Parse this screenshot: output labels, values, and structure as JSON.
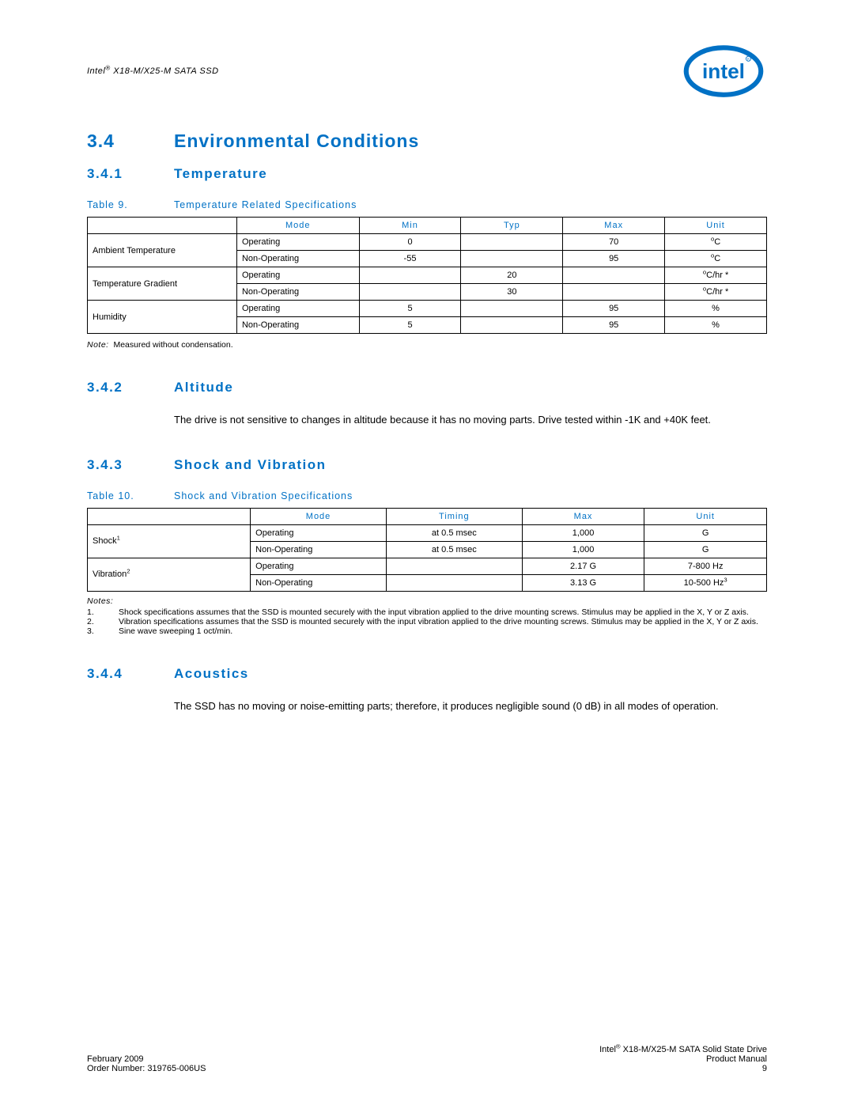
{
  "colors": {
    "intel_blue": "#0071c5",
    "text": "#000000",
    "bg": "#ffffff",
    "border": "#000000"
  },
  "header": {
    "doc_title_prefix": "Intel",
    "doc_title_suffix": " X18-M/X25-M SATA SSD",
    "logo_text": "intel"
  },
  "section": {
    "num": "3.4",
    "title": "Environmental Conditions"
  },
  "sub1": {
    "num": "3.4.1",
    "title": "Temperature",
    "table_caption_lead": "Table 9.",
    "table_caption": "Temperature Related Specifications",
    "columns": [
      "",
      "Mode",
      "Min",
      "Typ",
      "Max",
      "Unit"
    ],
    "col_widths": [
      "22%",
      "18%",
      "15%",
      "15%",
      "15%",
      "15%"
    ],
    "rows": [
      {
        "param": "Ambient Temperature",
        "mode": "Operating",
        "min": "0",
        "typ": "",
        "max": "70",
        "unit_html": "<sup>o</sup>C"
      },
      {
        "param": "",
        "mode": "Non-Operating",
        "min": "-55",
        "typ": "",
        "max": "95",
        "unit_html": "<sup>o</sup>C"
      },
      {
        "param": "Temperature Gradient",
        "mode": "Operating",
        "min": "",
        "typ": "20",
        "max": "",
        "unit_html": "<sup>o</sup>C/hr *"
      },
      {
        "param": "",
        "mode": "Non-Operating",
        "min": "",
        "typ": "30",
        "max": "",
        "unit_html": "<sup>o</sup>C/hr *"
      },
      {
        "param": "Humidity",
        "mode": "Operating",
        "min": "5",
        "typ": "",
        "max": "95",
        "unit_html": "%"
      },
      {
        "param": "",
        "mode": "Non-Operating",
        "min": "5",
        "typ": "",
        "max": "95",
        "unit_html": "%"
      }
    ],
    "note_lead": "Note:",
    "note_text": "Measured without condensation."
  },
  "sub2": {
    "num": "3.4.2",
    "title": "Altitude",
    "body": "The drive is not sensitive to changes in altitude because it has no moving parts. Drive tested within -1K and +40K feet."
  },
  "sub3": {
    "num": "3.4.3",
    "title": "Shock and Vibration",
    "table_caption_lead": "Table 10.",
    "table_caption": "Shock and Vibration Specifications",
    "columns": [
      "",
      "Mode",
      "Timing",
      "Max",
      "Unit"
    ],
    "col_widths": [
      "24%",
      "20%",
      "20%",
      "18%",
      "18%"
    ],
    "rows": [
      {
        "param_html": "Shock<sup>1</sup>",
        "mode": "Operating",
        "timing": "at 0.5 msec",
        "max": "1,000",
        "unit_html": "G"
      },
      {
        "param_html": "",
        "mode": "Non-Operating",
        "timing": "at 0.5 msec",
        "max": "1,000",
        "unit_html": "G"
      },
      {
        "param_html": "Vibration<sup>2</sup>",
        "mode": "Operating",
        "timing": "",
        "max": "2.17 G",
        "unit_html": "7-800 Hz"
      },
      {
        "param_html": "",
        "mode": "Non-Operating",
        "timing": "",
        "max": "3.13 G",
        "unit_html": "10-500 Hz<sup>3</sup>"
      }
    ],
    "notes_lead": "Notes:",
    "notes": [
      "Shock specifications assumes that the SSD is mounted securely with the input vibration applied to the drive mounting screws. Stimulus may be applied in the X, Y or Z axis.",
      "Vibration specifications assumes that the SSD is mounted securely with the input vibration applied to the drive mounting screws. Stimulus may be applied in the X, Y or Z axis.",
      "Sine wave sweeping 1 oct/min."
    ]
  },
  "sub4": {
    "num": "3.4.4",
    "title": "Acoustics",
    "body": "The SSD has no moving or noise-emitting parts; therefore, it produces negligible sound (0 dB) in all modes of operation."
  },
  "footer": {
    "left1": "February 2009",
    "left2": "Order Number: 319765-006US",
    "right1_prefix": "Intel",
    "right1_suffix": " X18-M/X25-M SATA Solid State Drive",
    "right2": "Product Manual",
    "right3": "9"
  }
}
